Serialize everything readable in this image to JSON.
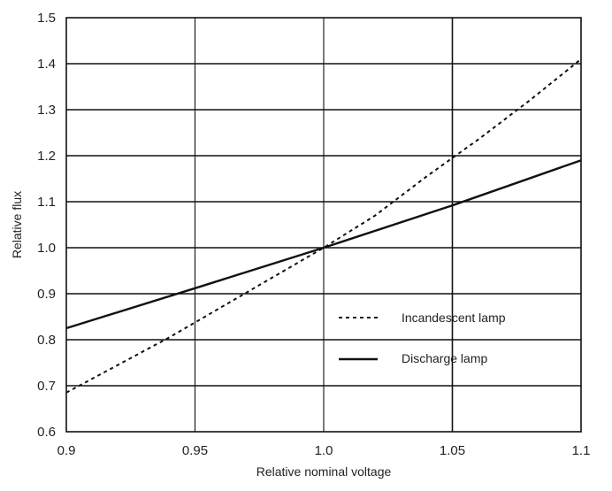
{
  "chart_data": {
    "type": "line",
    "title": "",
    "xlabel": "Relative nominal voltage",
    "ylabel": "Relative flux",
    "xlim": [
      0.9,
      1.1
    ],
    "ylim": [
      0.6,
      1.5
    ],
    "x_ticks": [
      "0.9",
      "0.95",
      "1.0",
      "1.05",
      "1.1"
    ],
    "y_ticks": [
      "0.6",
      "0.7",
      "0.8",
      "0.9",
      "1.0",
      "1.1",
      "1.2",
      "1.3",
      "1.4",
      "1.5"
    ],
    "grid": true,
    "legend_position": "middle-right",
    "series": [
      {
        "name": "Incandescent lamp",
        "style": "dotted",
        "color": "#111111",
        "x": [
          0.9,
          0.92,
          0.94,
          0.96,
          0.98,
          1.0,
          1.02,
          1.04,
          1.06,
          1.08,
          1.1
        ],
        "y": [
          0.685,
          0.745,
          0.805,
          0.87,
          0.935,
          1.0,
          1.07,
          1.155,
          1.235,
          1.32,
          1.41
        ]
      },
      {
        "name": "Discharge lamp",
        "style": "solid",
        "color": "#111111",
        "x": [
          0.9,
          0.95,
          1.0,
          1.05,
          1.1
        ],
        "y": [
          0.825,
          0.912,
          1.0,
          1.092,
          1.19
        ]
      }
    ]
  }
}
